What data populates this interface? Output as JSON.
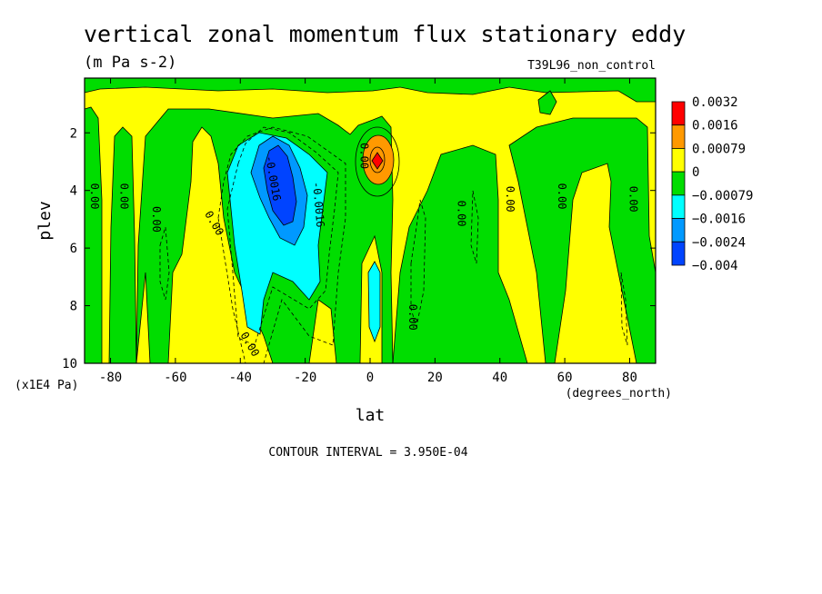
{
  "chart_data": {
    "type": "heatmap",
    "title": "vertical zonal momentum flux stationary eddy",
    "units": "(m Pa s-2)",
    "dataset": "T39L96_non_control",
    "xlabel": "lat",
    "x_units": "(degrees_north)",
    "ylabel": "plev",
    "y_units": "(x1E4 Pa)",
    "xlim": [
      -88,
      88
    ],
    "ylim": [
      10,
      0.1
    ],
    "x_ticks": [
      -80,
      -60,
      -40,
      -20,
      0,
      20,
      40,
      60,
      80
    ],
    "y_ticks": [
      2,
      4,
      6,
      8,
      10
    ],
    "footer": "CONTOUR INTERVAL = 3.950E-04",
    "colorbar": {
      "levels": [
        "0.0032",
        "0.0016",
        "0.00079",
        "0",
        "−0.00079",
        "−0.0016",
        "−0.0024",
        "−0.004"
      ],
      "colors": [
        "#ff0000",
        "#ff9900",
        "#ffff00",
        "#00dd00",
        "#00ffff",
        "#0099ff",
        "#0044ff"
      ]
    },
    "contour_labels": [
      {
        "text": "0.00",
        "x": -86,
        "y": 4.2,
        "rot": 90
      },
      {
        "text": "0.00",
        "x": -77,
        "y": 4.2,
        "rot": 90
      },
      {
        "text": "0.00",
        "x": -67,
        "y": 5.0,
        "rot": 90
      },
      {
        "text": "0.00",
        "x": -49,
        "y": 5.2,
        "rot": 60
      },
      {
        "text": "-0.0016",
        "x": -31,
        "y": 3.6,
        "rot": 80
      },
      {
        "text": "-0.0016",
        "x": -17,
        "y": 4.5,
        "rot": 85
      },
      {
        "text": "0.00",
        "x": -38,
        "y": 9.4,
        "rot": 60
      },
      {
        "text": "0.00",
        "x": -3,
        "y": 2.8,
        "rot": 90
      },
      {
        "text": "0.00",
        "x": 12,
        "y": 8.4,
        "rot": 90
      },
      {
        "text": "0.00",
        "x": 27,
        "y": 4.8,
        "rot": 90
      },
      {
        "text": "0.00",
        "x": 42,
        "y": 4.3,
        "rot": 90
      },
      {
        "text": "0.00",
        "x": 58,
        "y": 4.2,
        "rot": 90
      },
      {
        "text": "0.00",
        "x": 80,
        "y": 4.3,
        "rot": 90
      }
    ]
  }
}
